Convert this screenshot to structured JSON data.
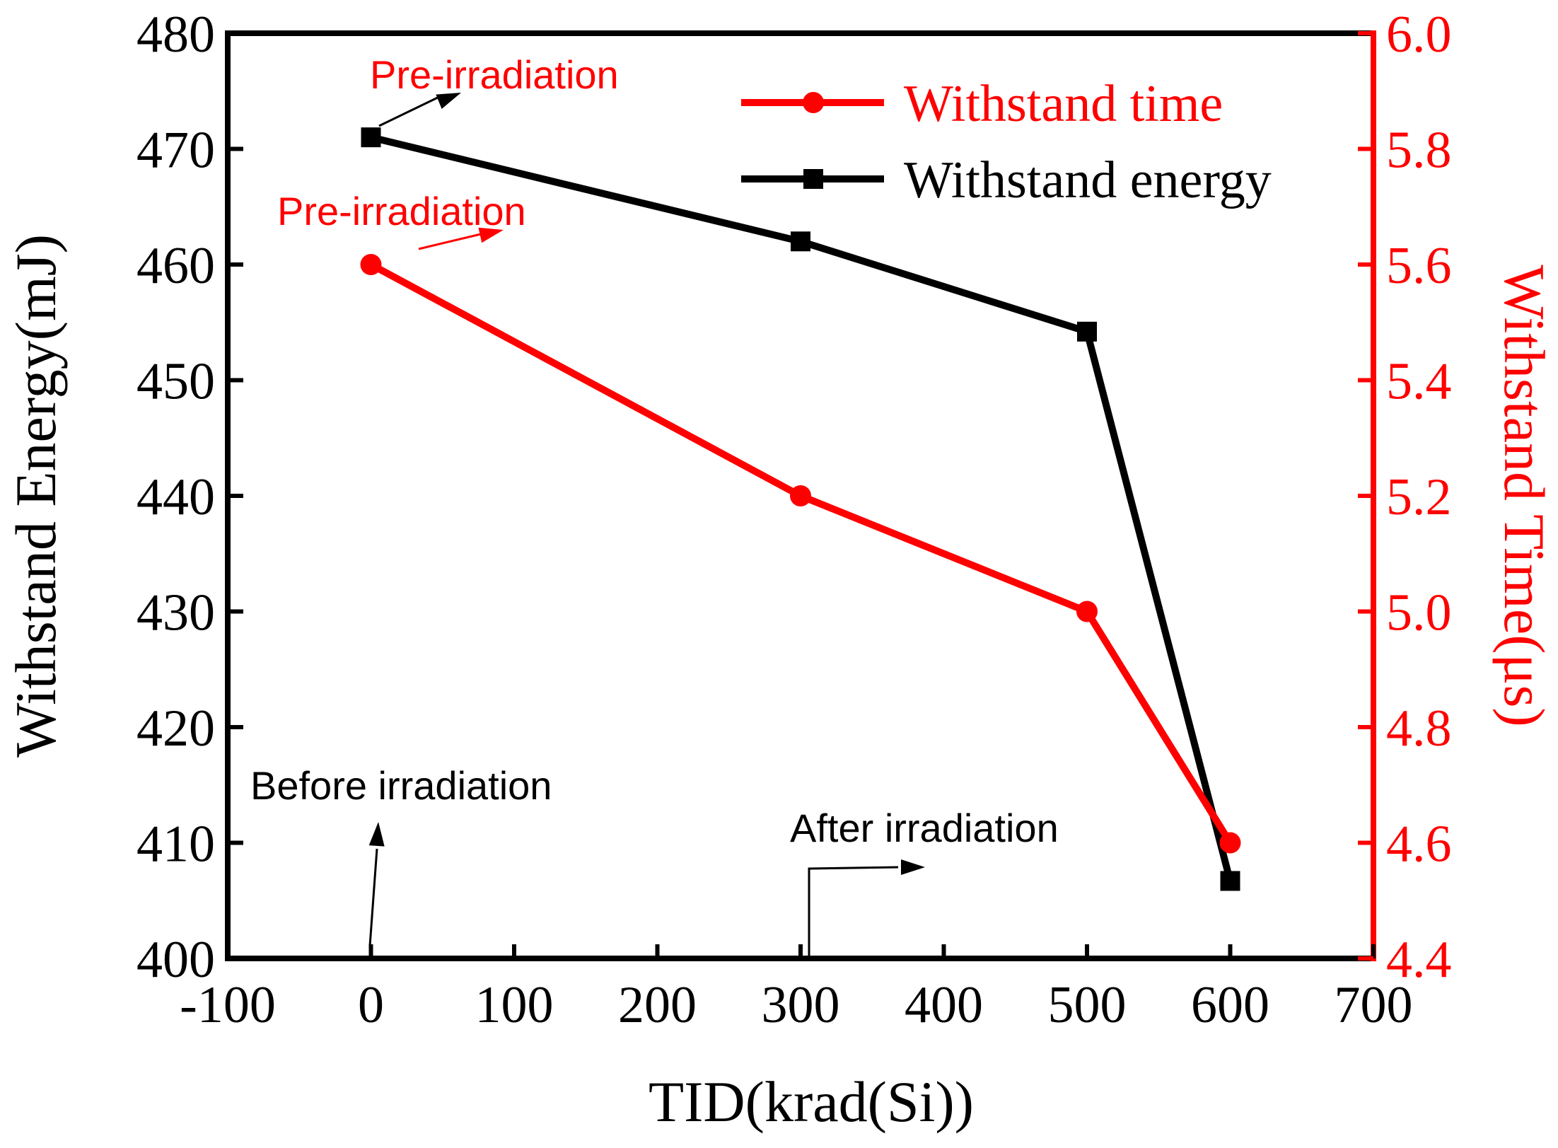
{
  "chart_data": {
    "type": "line",
    "xlabel": "TID(krad(Si))",
    "ylabel_left": "Withstand Energy(mJ)",
    "ylabel_right": "Withstand Time(μs)",
    "xlim": [
      -100,
      700
    ],
    "ylim_left": [
      400,
      480
    ],
    "ylim_right": [
      4.4,
      6.0
    ],
    "x_ticks": [
      "-100",
      "0",
      "100",
      "200",
      "300",
      "400",
      "500",
      "600",
      "700"
    ],
    "y_left_ticks": [
      "400",
      "410",
      "420",
      "430",
      "440",
      "450",
      "460",
      "470",
      "480"
    ],
    "y_right_ticks": [
      "4.4",
      "4.6",
      "4.8",
      "5.0",
      "5.2",
      "5.4",
      "5.6",
      "5.8",
      "6.0"
    ],
    "series": [
      {
        "name": "Withstand time",
        "axis": "right",
        "color": "#ff0000",
        "marker": "circle",
        "x": [
          0,
          300,
          500,
          600
        ],
        "values": [
          5.6,
          5.2,
          5.0,
          4.6
        ]
      },
      {
        "name": "Withstand energy",
        "axis": "left",
        "color": "#000000",
        "marker": "square",
        "x": [
          0,
          300,
          500,
          600
        ],
        "values": [
          471,
          462,
          454.2,
          406.7
        ]
      }
    ],
    "legend": {
      "position": "top-right"
    },
    "annotations": [
      {
        "text": "Pre-irradiation",
        "color": "#ff0000"
      },
      {
        "text": "Pre-irradiation",
        "color": "#ff0000"
      },
      {
        "text": "Before irradiation",
        "color": "#000000"
      },
      {
        "text": "After irradiation",
        "color": "#000000"
      }
    ],
    "colors": {
      "left_axis": "#000000",
      "right_axis": "#ff0000"
    }
  }
}
